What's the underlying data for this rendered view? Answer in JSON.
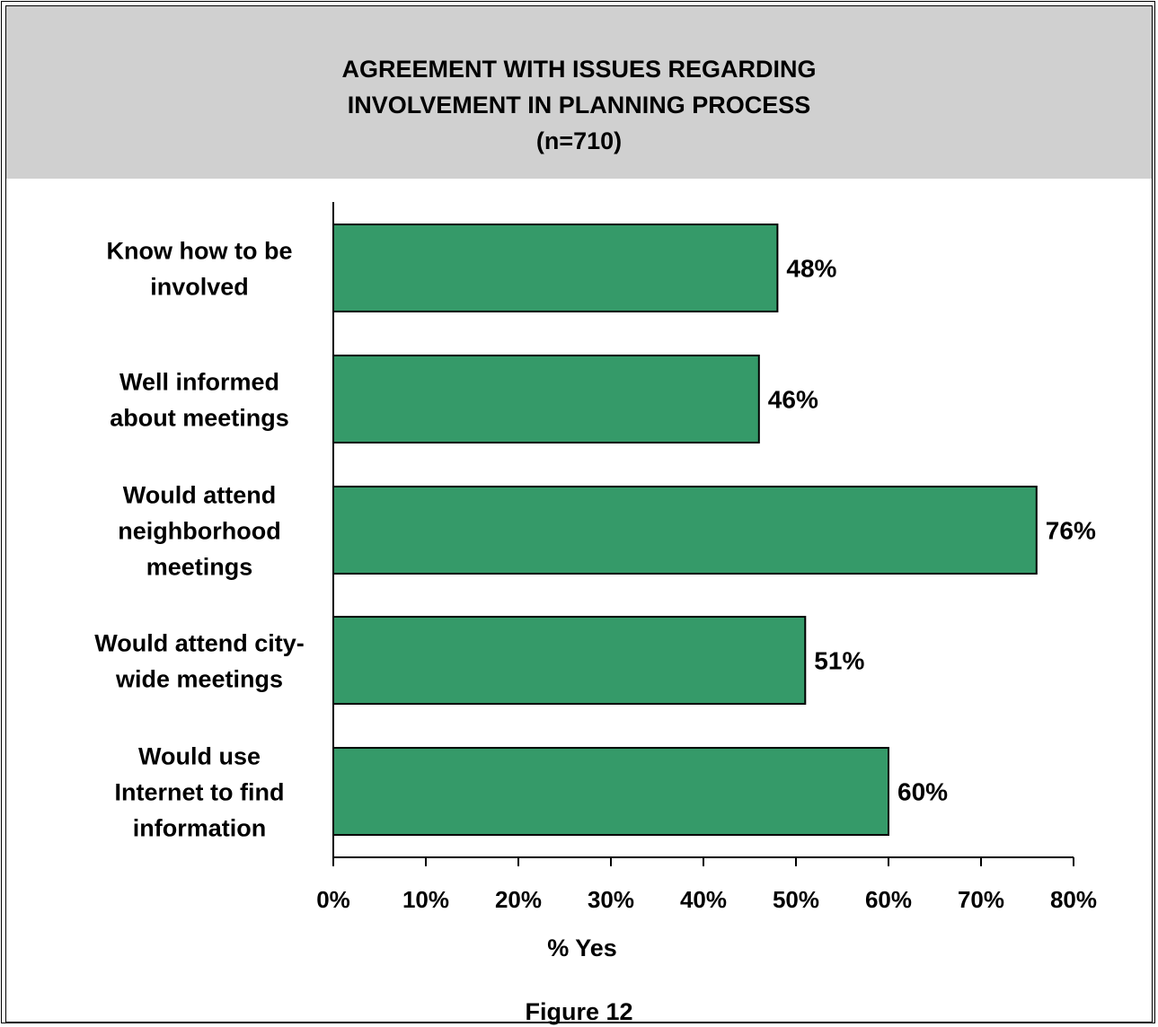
{
  "chart_data": {
    "type": "bar",
    "orientation": "horizontal",
    "title_lines": [
      "AGREEMENT WITH ISSUES REGARDING",
      "INVOLVEMENT IN PLANNING PROCESS",
      "(n=710)"
    ],
    "categories": [
      [
        "Know how to be",
        "involved"
      ],
      [
        "Well informed",
        "about meetings"
      ],
      [
        "Would attend",
        "neighborhood",
        "meetings"
      ],
      [
        "Would attend city-",
        "wide meetings"
      ],
      [
        "Would use",
        "Internet to find",
        "information"
      ]
    ],
    "values": [
      48,
      46,
      76,
      51,
      60
    ],
    "data_labels": [
      "48%",
      "46%",
      "76%",
      "51%",
      "60%"
    ],
    "xlim": [
      0,
      80
    ],
    "x_ticks": [
      "0%",
      "10%",
      "20%",
      "30%",
      "40%",
      "50%",
      "60%",
      "70%",
      "80%"
    ],
    "xlabel": "% Yes",
    "ylabel": "",
    "bar_color": "#359a69",
    "grid": false,
    "legend": "none"
  },
  "caption": "Figure 12"
}
